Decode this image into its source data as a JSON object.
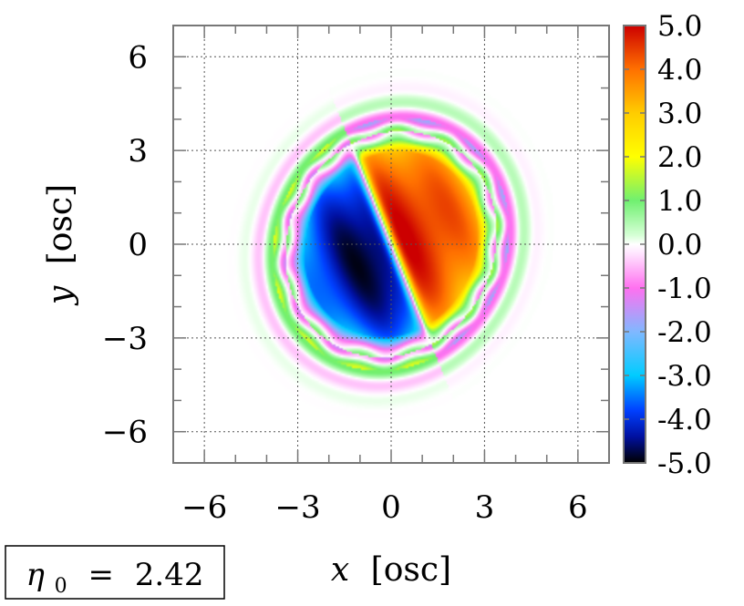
{
  "chart_data": {
    "type": "heatmap",
    "title": "",
    "xlabel": {
      "var": "x",
      "unit": "[osc]"
    },
    "ylabel": {
      "var": "y",
      "unit": "[osc]"
    },
    "xlim": [
      -7.0,
      7.0
    ],
    "ylim": [
      -7.0,
      7.0
    ],
    "xticks": [
      -6,
      -3,
      0,
      3,
      6
    ],
    "yticks": [
      -6,
      -3,
      0,
      3,
      6
    ],
    "xtick_labels": [
      "−6",
      "−3",
      "0",
      "3",
      "6"
    ],
    "ytick_labels": [
      "−6",
      "−3",
      "0",
      "3",
      "6"
    ],
    "grid": true,
    "colorbar": {
      "range": [
        -5.0,
        5.0
      ],
      "tick_values": [
        5,
        4,
        3,
        2,
        1,
        0,
        -1,
        -2,
        -3,
        -4,
        -5
      ],
      "tick_labels": [
        "5.0",
        "4.0",
        "3.0",
        "2.0",
        "1.0",
        "0.0",
        "-1.0",
        "-2.0",
        "-3.0",
        "-4.0",
        "-5.0"
      ],
      "stops": [
        {
          "value": -5.0,
          "color": "#000000"
        },
        {
          "value": -4.4,
          "color": "#0010a0"
        },
        {
          "value": -3.8,
          "color": "#0040ff"
        },
        {
          "value": -3.0,
          "color": "#00ccff"
        },
        {
          "value": -2.0,
          "color": "#80b8ff"
        },
        {
          "value": -1.0,
          "color": "#ff70f0"
        },
        {
          "value": -0.2,
          "color": "#ffe6ff"
        },
        {
          "value": 0.0,
          "color": "#ffffff"
        },
        {
          "value": 0.2,
          "color": "#d6ffd6"
        },
        {
          "value": 1.0,
          "color": "#70f070"
        },
        {
          "value": 2.0,
          "color": "#ffff00"
        },
        {
          "value": 3.0,
          "color": "#ffcc00"
        },
        {
          "value": 4.0,
          "color": "#ff7000"
        },
        {
          "value": 5.0,
          "color": "#cc0000"
        }
      ]
    },
    "field": {
      "description_values": {
        "peak_positive": 4.9,
        "peak_negative": -4.9,
        "cloud_semi_axes_osc": [
          3.3,
          3.7
        ],
        "cloud_tilt_deg": -28,
        "vortex_line_angle_deg": -68,
        "fringe_wavelength_osc": 0.9
      }
    },
    "annotation": {
      "symbol": "η",
      "subscript": "0",
      "relation": "=",
      "value": "2.42"
    }
  }
}
